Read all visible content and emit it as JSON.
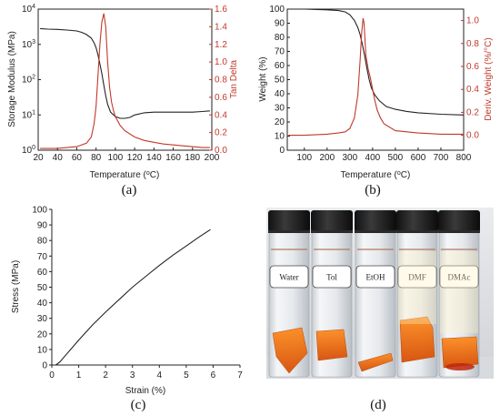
{
  "chart_data": [
    {
      "panel": "(a)",
      "type": "line",
      "xlabel": "Temperature (°C)",
      "xlim": [
        20,
        200
      ],
      "xticks": [
        "20",
        "40",
        "60",
        "80",
        "100",
        "120",
        "140",
        "160",
        "180",
        "200"
      ],
      "y_left": {
        "label": "Storage Modulus (MPa)",
        "scale": "log",
        "lim": [
          1,
          10000
        ],
        "ticks": [
          "10^0",
          "10^1",
          "10^2",
          "10^3",
          "10^4"
        ]
      },
      "y_right": {
        "label": "Tan Delta",
        "lim": [
          0.0,
          1.6
        ],
        "ticks": [
          "0.0",
          "0.2",
          "0.4",
          "0.6",
          "0.8",
          "1.0",
          "1.2",
          "1.4",
          "1.6"
        ]
      },
      "series": [
        {
          "axis": "left",
          "color": "#222222",
          "x": [
            22,
            30,
            40,
            50,
            60,
            65,
            70,
            75,
            78,
            80,
            82,
            84,
            86,
            88,
            90,
            92,
            95,
            100,
            105,
            110,
            115,
            120,
            130,
            140,
            150,
            160,
            170,
            180,
            190,
            198
          ],
          "y": [
            2800,
            2700,
            2650,
            2550,
            2400,
            2200,
            1900,
            1500,
            1100,
            800,
            500,
            280,
            150,
            70,
            35,
            20,
            12,
            9,
            8,
            8,
            8.5,
            10,
            11.5,
            12,
            12,
            12,
            12,
            12,
            12.5,
            13
          ]
        },
        {
          "axis": "right",
          "color": "#c0392b",
          "x": [
            22,
            40,
            60,
            70,
            75,
            78,
            80,
            82,
            84,
            86,
            88,
            90,
            92,
            94,
            96,
            98,
            100,
            105,
            110,
            120,
            130,
            140,
            150,
            160,
            170,
            180,
            190,
            198
          ],
          "y": [
            0.02,
            0.02,
            0.04,
            0.08,
            0.15,
            0.3,
            0.5,
            0.85,
            1.2,
            1.45,
            1.55,
            1.4,
            1.0,
            0.72,
            0.55,
            0.45,
            0.38,
            0.28,
            0.22,
            0.15,
            0.11,
            0.09,
            0.07,
            0.06,
            0.05,
            0.04,
            0.03,
            0.03
          ]
        }
      ]
    },
    {
      "panel": "(b)",
      "type": "line",
      "xlabel": "Temperature (°C)",
      "xlim": [
        25,
        800
      ],
      "xticks": [
        "100",
        "200",
        "300",
        "400",
        "500",
        "600",
        "700",
        "800"
      ],
      "y_left": {
        "label": "Weight (%)",
        "lim": [
          0,
          100
        ],
        "ticks": [
          "0",
          "10",
          "20",
          "30",
          "40",
          "50",
          "60",
          "70",
          "80",
          "90",
          "100"
        ]
      },
      "y_right": {
        "label": "Deriv. Weight (%/°C)",
        "lim": [
          -0.13,
          1.1
        ],
        "ticks": [
          "0.0",
          "0.2",
          "0.4",
          "0.6",
          "0.8",
          "1.0"
        ]
      },
      "series": [
        {
          "axis": "left",
          "color": "#222222",
          "x": [
            30,
            100,
            200,
            250,
            280,
            300,
            320,
            335,
            345,
            355,
            365,
            375,
            385,
            395,
            410,
            430,
            460,
            500,
            550,
            600,
            700,
            800
          ],
          "y": [
            100,
            100,
            99.5,
            99,
            98,
            96,
            92,
            87,
            82,
            75,
            67,
            58,
            50,
            44,
            39,
            35,
            31,
            29,
            27.5,
            26.5,
            25.5,
            25
          ]
        },
        {
          "axis": "right",
          "color": "#c0392b",
          "x": [
            30,
            100,
            200,
            250,
            280,
            300,
            320,
            335,
            345,
            352,
            358,
            362,
            366,
            370,
            380,
            390,
            400,
            410,
            420,
            435,
            450,
            500,
            600,
            700,
            800
          ],
          "y": [
            0,
            0,
            0.01,
            0.02,
            0.03,
            0.06,
            0.15,
            0.35,
            0.65,
            0.9,
            1.02,
            0.98,
            0.85,
            0.7,
            0.58,
            0.5,
            0.4,
            0.3,
            0.22,
            0.15,
            0.1,
            0.04,
            0.02,
            0.01,
            0.01
          ]
        }
      ]
    },
    {
      "panel": "(c)",
      "type": "line",
      "xlabel": "Strain (%)",
      "ylabel": "Stress (MPa)",
      "xlim": [
        0,
        7
      ],
      "ylim": [
        0,
        100
      ],
      "xticks": [
        "0",
        "1",
        "2",
        "3",
        "4",
        "5",
        "6",
        "7"
      ],
      "yticks": [
        "0",
        "10",
        "20",
        "30",
        "40",
        "50",
        "60",
        "70",
        "80",
        "90",
        "100"
      ],
      "series": [
        {
          "color": "#222222",
          "x": [
            0.15,
            0.3,
            0.5,
            1,
            1.5,
            2,
            2.5,
            3,
            3.5,
            4,
            4.5,
            5,
            5.5,
            5.9
          ],
          "y": [
            0,
            2,
            6,
            16,
            25.5,
            34,
            42,
            50,
            57,
            64,
            70.5,
            76.5,
            82.5,
            87
          ]
        }
      ]
    }
  ],
  "photo": {
    "panel": "(d)",
    "vials": [
      "Water",
      "Tol",
      "EtOH",
      "DMF",
      "DMAc"
    ]
  }
}
